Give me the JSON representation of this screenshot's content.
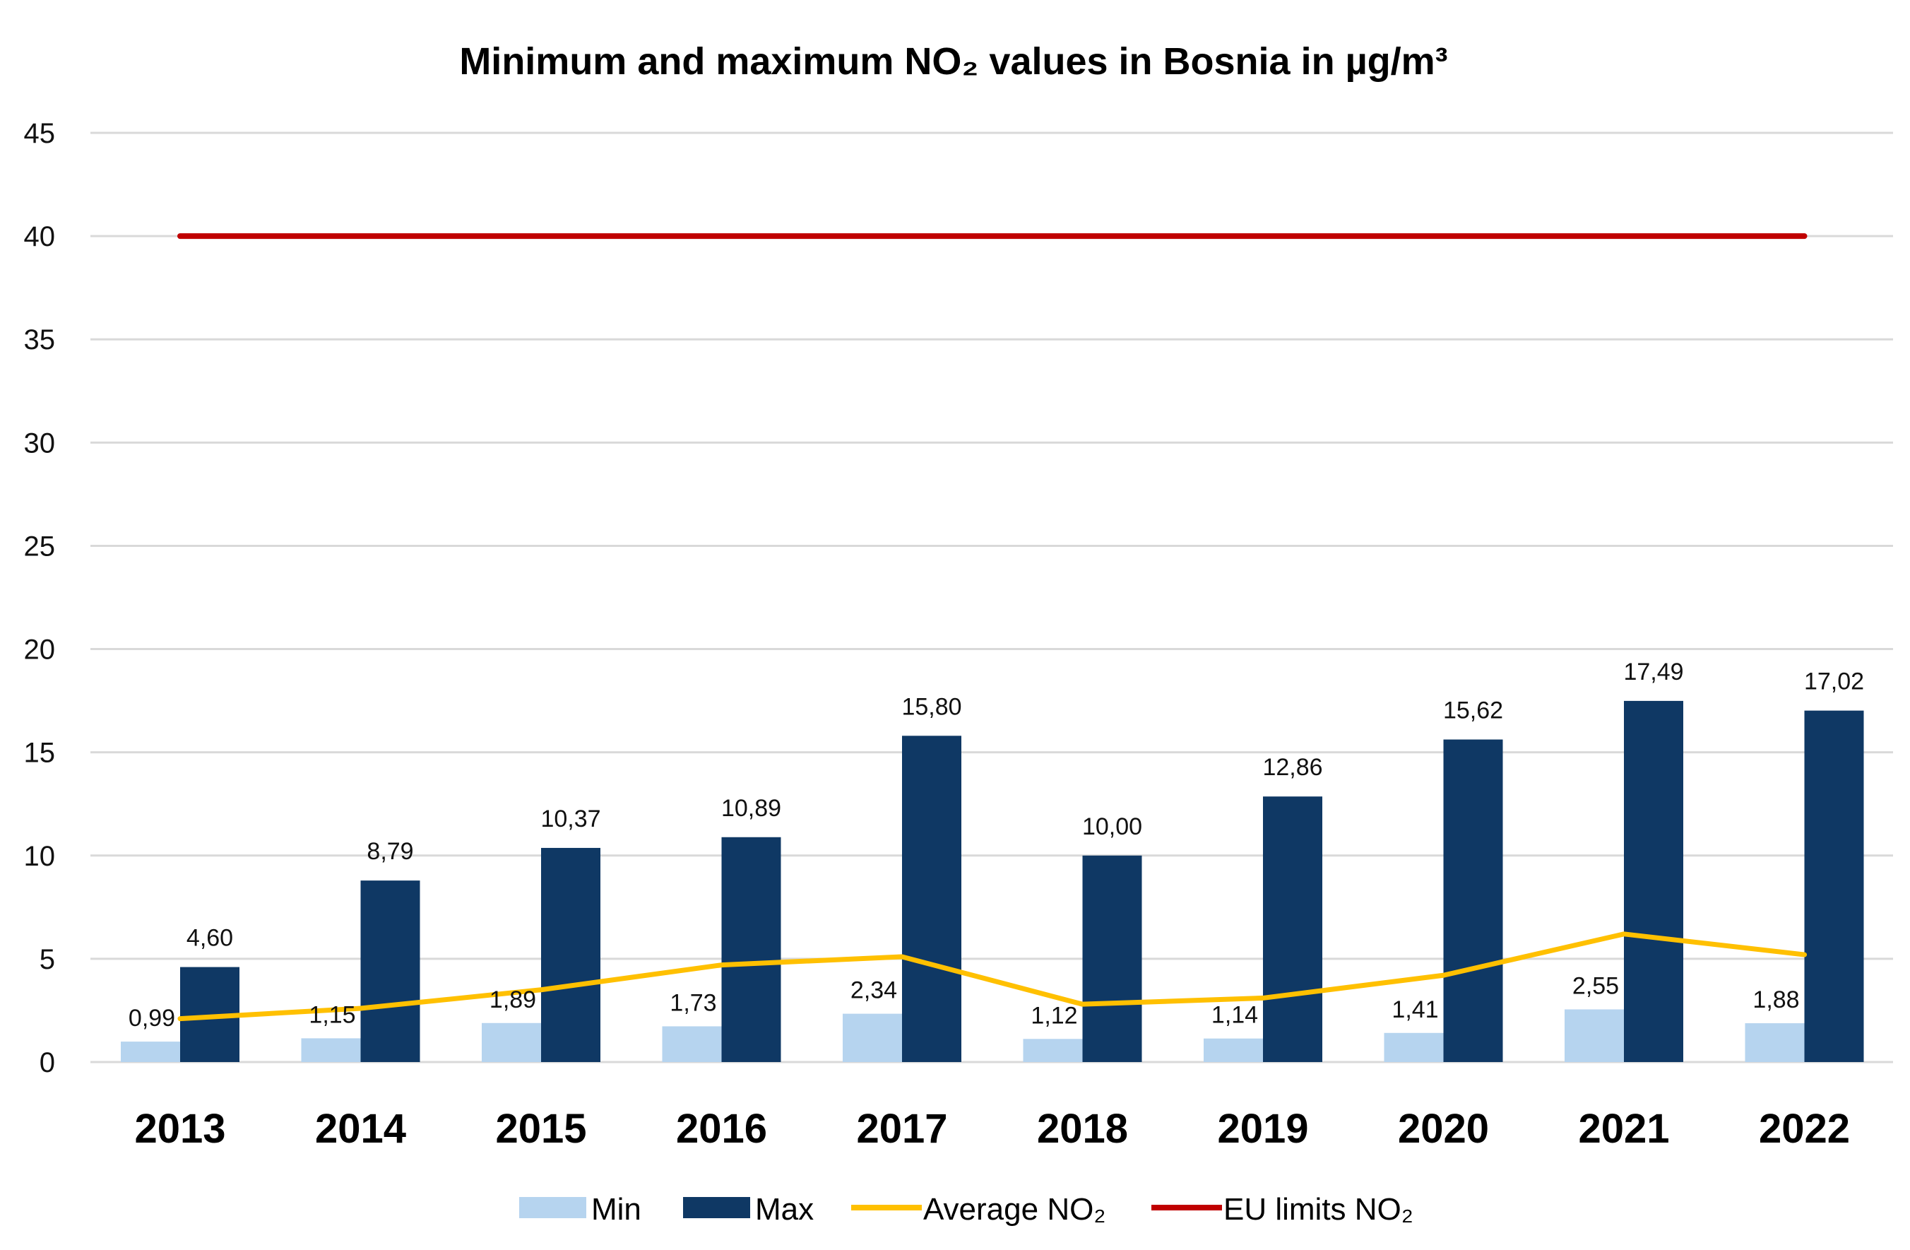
{
  "chart_data": {
    "type": "bar",
    "title": "Minimum and maximum NO₂ values in Bosnia in µg/m³",
    "xlabel": "",
    "ylabel": "",
    "categories": [
      "2013",
      "2014",
      "2015",
      "2016",
      "2017",
      "2018",
      "2019",
      "2020",
      "2021",
      "2022"
    ],
    "ylim": [
      0,
      45
    ],
    "yticks": [
      "0",
      "5",
      "10",
      "15",
      "20",
      "25",
      "30",
      "35",
      "40",
      "45"
    ],
    "grid": true,
    "legend_position": "bottom",
    "series": [
      {
        "name": "Min",
        "kind": "bar",
        "color": "#b6d4ef",
        "values": [
          0.99,
          1.15,
          1.89,
          1.73,
          2.34,
          1.12,
          1.14,
          1.41,
          2.55,
          1.88
        ],
        "labels": [
          "0,99",
          "1,15",
          "1,89",
          "1,73",
          "2,34",
          "1,12",
          "1,14",
          "1,41",
          "2,55",
          "1,88"
        ]
      },
      {
        "name": "Max",
        "kind": "bar",
        "color": "#0f3864",
        "values": [
          4.6,
          8.79,
          10.37,
          10.89,
          15.8,
          10.0,
          12.86,
          15.62,
          17.49,
          17.02
        ],
        "labels": [
          "4,60",
          "8,79",
          "10,37",
          "10,89",
          "15,80",
          "10,00",
          "12,86",
          "15,62",
          "17,49",
          "17,02"
        ]
      },
      {
        "name": "Average NO₂",
        "kind": "line",
        "color": "#ffc000",
        "values": [
          2.1,
          2.6,
          3.5,
          4.7,
          5.1,
          2.8,
          3.1,
          4.2,
          6.2,
          5.2
        ]
      },
      {
        "name": "EU limits NO₂",
        "kind": "line",
        "color": "#c00000",
        "values": [
          40,
          40,
          40,
          40,
          40,
          40,
          40,
          40,
          40,
          40
        ]
      }
    ]
  }
}
